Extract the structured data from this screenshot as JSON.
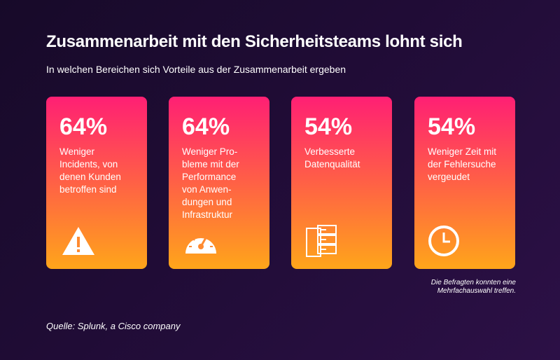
{
  "header": {
    "title": "Zusammenarbeit mit den Sicherheitsteams lohnt sich",
    "subtitle": "In welchen Bereichen sich Vorteile aus der Zusammenarbeit ergeben"
  },
  "cards": [
    {
      "figure": "64%",
      "lines": [
        "Weniger",
        "Incidents, von",
        "denen Kunden",
        "betroffen sind"
      ]
    },
    {
      "figure": "64%",
      "lines": [
        "Weniger Pro-",
        "bleme mit der",
        "Performance",
        "von Anwen-",
        "dungen und",
        "Infrastruktur"
      ]
    },
    {
      "figure": "54%",
      "lines": [
        "Verbesserte",
        "Datenqualität"
      ]
    },
    {
      "figure": "54%",
      "lines": [
        "Weniger Zeit mit",
        "der Fehlersuche",
        "vergeudet"
      ]
    }
  ],
  "note": [
    "Die Befragten konnten eine",
    "Mehrfachauswahl treffen."
  ],
  "source": "Quelle: Splunk, a Cisco company"
}
